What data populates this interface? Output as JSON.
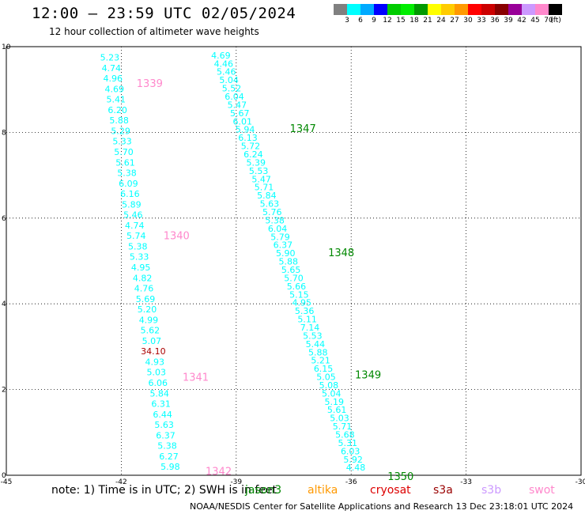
{
  "header": {
    "title": "12:00 – 23:59 UTC 02/05/2024",
    "subtitle": "12 hour collection of altimeter wave heights"
  },
  "color_scale": {
    "colors": [
      "#808080",
      "#00ffff",
      "#00aaff",
      "#0000ff",
      "#00cc00",
      "#00ee00",
      "#009900",
      "#ffff00",
      "#ffcc00",
      "#ff9900",
      "#ff0000",
      "#cc0000",
      "#880000",
      "#990099",
      "#cc99ff",
      "#ff88cc",
      "#000000"
    ],
    "labels": [
      "3",
      "6",
      "9",
      "12",
      "15",
      "18",
      "21",
      "24",
      "27",
      "30",
      "33",
      "36",
      "39",
      "42",
      "45",
      "70",
      "(ft)"
    ]
  },
  "chart_data": {
    "type": "scatter",
    "title": "12:00 – 23:59 UTC 02/05/2024",
    "subtitle": "12 hour collection of altimeter wave heights",
    "xlim": [
      -45,
      -30
    ],
    "ylim": [
      0,
      10
    ],
    "x_ticks": [
      "-45",
      "-42",
      "-39",
      "-36",
      "-33",
      "-30"
    ],
    "y_ticks": [
      "0",
      "2",
      "4",
      "6",
      "8",
      "10"
    ],
    "grid": true,
    "tracks": [
      {
        "start": [
          -42.3,
          9.75
        ],
        "end": [
          -40.72,
          0.2
        ],
        "values": [
          "5.23",
          "4.74",
          "4.96",
          "4.69",
          "5.41",
          "6.20",
          "5.88",
          "5.29",
          "5.33",
          "5.70",
          "5.61",
          "5.38",
          "6.09",
          "6.16",
          "5.89",
          "5.46",
          "4.74",
          "5.74",
          "5.38",
          "5.33",
          "4.95",
          "4.82",
          "4.76",
          "5.69",
          "5.20",
          "4.99",
          "5.62",
          "5.07",
          "34.10",
          "4.93",
          "5.03",
          "6.06",
          "5.84",
          "6.31",
          "6.44",
          "5.63",
          "6.37",
          "5.38",
          "6.27",
          "5.98"
        ],
        "colors": {
          "28": "#aa0000"
        }
      },
      {
        "start": [
          -39.4,
          9.8
        ],
        "end": [
          -35.88,
          0.18
        ],
        "values": [
          "4.69",
          "4.46",
          "5.46",
          "5.04",
          "5.52",
          "6.04",
          "5.47",
          "5.67",
          "6.01",
          "5.94",
          "6.13",
          "5.72",
          "6.24",
          "5.39",
          "5.53",
          "5.47",
          "5.71",
          "5.84",
          "5.63",
          "5.76",
          "5.38",
          "6.04",
          "5.79",
          "6.37",
          "5.90",
          "5.88",
          "5.65",
          "5.70",
          "5.66",
          "5.15",
          "4.95",
          "5.36",
          "5.11",
          "7.14",
          "5.53",
          "5.44",
          "5.88",
          "5.21",
          "6.15",
          "5.05",
          "5.08",
          "5.04",
          "5.19",
          "5.61",
          "5.03",
          "5.71",
          "5.68",
          "5.31",
          "6.03",
          "5.92",
          "4.48"
        ]
      }
    ],
    "pass_labels": [
      {
        "text": "1339",
        "x": -41.6,
        "y": 9.15,
        "color": "#ff88cc"
      },
      {
        "text": "1340",
        "x": -40.9,
        "y": 5.6,
        "color": "#ff88cc"
      },
      {
        "text": "1341",
        "x": -40.4,
        "y": 2.3,
        "color": "#ff88cc"
      },
      {
        "text": "1342",
        "x": -39.8,
        "y": 0.1,
        "color": "#ff88cc"
      },
      {
        "text": "1347",
        "x": -37.6,
        "y": 8.1,
        "color": "#008800"
      },
      {
        "text": "1348",
        "x": -36.6,
        "y": 5.2,
        "color": "#008800"
      },
      {
        "text": "1349",
        "x": -35.9,
        "y": 2.35,
        "color": "#008800"
      },
      {
        "text": "1350",
        "x": -35.05,
        "y": -0.02,
        "color": "#008800"
      }
    ]
  },
  "notes": {
    "text": "note:  1) Time is in UTC;  2) SWH is in feet"
  },
  "legend": [
    {
      "name": "jason3",
      "color": "#008800"
    },
    {
      "name": "altika",
      "color": "#ff9900"
    },
    {
      "name": "cryosat",
      "color": "#dd0000"
    },
    {
      "name": "s3a",
      "color": "#990000"
    },
    {
      "name": "s3b",
      "color": "#cc99ff"
    },
    {
      "name": "swot",
      "color": "#ff88cc"
    }
  ],
  "footer": {
    "text": "NOAA/NESDIS Center for Satellite Applications and Research    13 Dec 23:18:01 UTC 2024"
  }
}
